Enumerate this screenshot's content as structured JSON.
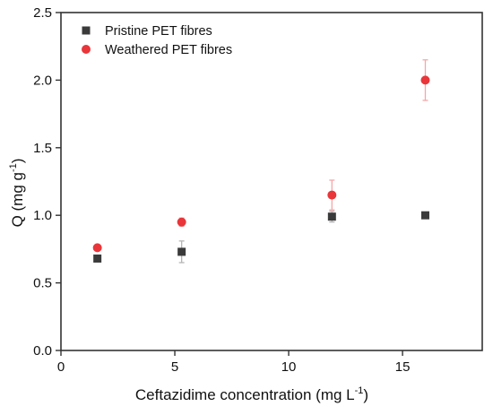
{
  "chart_data": {
    "type": "scatter",
    "xlabel": "Ceftazidime concentration (mg L",
    "xlabel_sup": "-1",
    "xlabel_close": ")",
    "ylabel": "Q (mg g",
    "ylabel_sup": "-1",
    "ylabel_close": ")",
    "xlim": [
      0,
      18.5
    ],
    "ylim": [
      0,
      2.5
    ],
    "x_ticks": [
      0,
      5,
      10,
      15
    ],
    "x_tick_labels": [
      "0",
      "5",
      "10",
      "15"
    ],
    "y_ticks": [
      0,
      0.5,
      1.0,
      1.5,
      2.0,
      2.5
    ],
    "y_tick_labels": [
      "0.0",
      "0.5",
      "1.0",
      "1.5",
      "2.0",
      "2.5"
    ],
    "grid": false,
    "legend_position": "top-left",
    "series": [
      {
        "name": "Pristine PET fibres",
        "marker": "square",
        "color": "#3a3a3a",
        "error_color": "#b5b5b5",
        "x": [
          1.6,
          5.3,
          11.9,
          16.0
        ],
        "y": [
          0.68,
          0.73,
          0.99,
          1.0
        ],
        "error": [
          0.02,
          0.08,
          0.04,
          0.02
        ]
      },
      {
        "name": "Weathered PET fibres",
        "marker": "circle",
        "color": "#e8363a",
        "error_color": "#f4a7a8",
        "x": [
          1.6,
          5.3,
          11.9,
          16.0
        ],
        "y": [
          0.76,
          0.95,
          1.15,
          2.0
        ],
        "error": [
          0.02,
          0.03,
          0.11,
          0.15
        ]
      }
    ]
  }
}
